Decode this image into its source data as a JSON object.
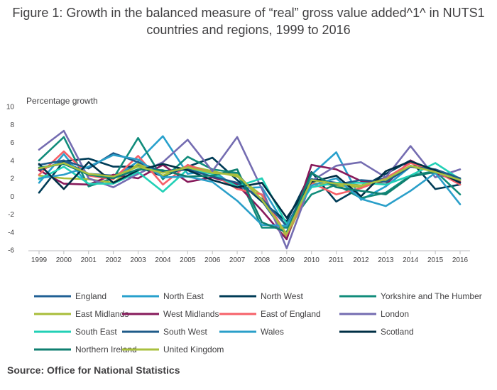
{
  "chart_data": {
    "type": "line",
    "title": "Figure 1: Growth in the balanced measure of “real” gross value added^1^ in NUTS1 countries and regions, 1999 to 2016",
    "ylabel": "Percentage growth",
    "xlabel": "",
    "ylim": [
      -6,
      10
    ],
    "yticks": [
      -6,
      -4,
      -2,
      0,
      2,
      4,
      6,
      8,
      10
    ],
    "x": [
      "1999",
      "2000",
      "2001",
      "2002",
      "2003",
      "2004",
      "2005",
      "2006",
      "2007",
      "2008",
      "2009",
      "2010",
      "2011",
      "2012",
      "2013",
      "2014",
      "2015",
      "2016"
    ],
    "grid": false,
    "legend_position": "bottom",
    "series": [
      {
        "name": "England",
        "color": "#206095",
        "values": [
          2.9,
          3.9,
          2.5,
          2.3,
          3.4,
          2.8,
          3.1,
          2.6,
          2.5,
          -0.5,
          -4.4,
          1.9,
          1.5,
          1.2,
          2.1,
          3.3,
          2.8,
          1.9
        ]
      },
      {
        "name": "North East",
        "color": "#27a0cc",
        "values": [
          1.5,
          4.7,
          1.2,
          2.0,
          3.9,
          6.7,
          2.5,
          2.9,
          0.9,
          1.0,
          -3.5,
          2.4,
          4.9,
          -0.4,
          1.1,
          3.3,
          2.8,
          1.8
        ]
      },
      {
        "name": "North West",
        "color": "#003c57",
        "values": [
          0.4,
          3.9,
          4.2,
          3.3,
          3.3,
          2.2,
          3.3,
          4.3,
          1.8,
          -0.6,
          -2.8,
          2.7,
          -0.6,
          1.0,
          2.5,
          4.0,
          0.8,
          1.3
        ]
      },
      {
        "name": "Yorkshire and The Humber",
        "color": "#118c7b",
        "values": [
          4.0,
          6.6,
          1.1,
          2.0,
          6.5,
          1.9,
          4.4,
          3.0,
          2.6,
          -3.5,
          -3.5,
          0.2,
          1.3,
          -0.2,
          0.4,
          2.3,
          2.8,
          0.2
        ]
      },
      {
        "name": "East Midlands",
        "color": "#a8bd3a",
        "values": [
          2.3,
          2.0,
          1.9,
          1.5,
          3.6,
          2.3,
          3.4,
          2.8,
          2.2,
          0.1,
          -4.6,
          1.5,
          1.2,
          1.0,
          1.7,
          3.3,
          2.8,
          2.0
        ]
      },
      {
        "name": "West Midlands",
        "color": "#871a5b",
        "values": [
          2.9,
          1.4,
          1.3,
          2.4,
          2.0,
          3.5,
          1.6,
          2.1,
          1.3,
          -1.6,
          -4.8,
          3.5,
          3.0,
          1.7,
          1.3,
          4.0,
          2.6,
          1.6
        ]
      },
      {
        "name": "East of England",
        "color": "#f66068",
        "values": [
          2.4,
          5.0,
          2.3,
          1.9,
          4.5,
          1.3,
          3.5,
          2.5,
          0.8,
          0.2,
          -4.3,
          1.5,
          0.2,
          0.9,
          2.0,
          3.7,
          2.8,
          1.3
        ]
      },
      {
        "name": "London",
        "color": "#746cb1",
        "values": [
          5.2,
          7.3,
          2.0,
          1.0,
          2.5,
          3.8,
          6.3,
          2.8,
          6.6,
          0.8,
          -5.8,
          1.7,
          3.4,
          3.8,
          2.1,
          5.6,
          2.1,
          3.0
        ]
      },
      {
        "name": "South East",
        "color": "#22d0b6",
        "values": [
          1.9,
          3.3,
          1.4,
          1.4,
          2.7,
          0.5,
          3.0,
          2.5,
          1.1,
          2.0,
          -3.1,
          1.0,
          1.5,
          1.5,
          1.3,
          2.3,
          3.7,
          1.9
        ]
      },
      {
        "name": "South West",
        "color": "#1f5b89",
        "values": [
          3.5,
          4.0,
          3.1,
          4.8,
          3.8,
          2.7,
          3.0,
          2.2,
          1.5,
          -0.3,
          -3.3,
          1.9,
          1.3,
          1.8,
          1.6,
          3.3,
          3.0,
          2.0
        ]
      },
      {
        "name": "Wales",
        "color": "#2a9fc9",
        "values": [
          2.0,
          2.4,
          3.3,
          4.6,
          4.1,
          2.1,
          2.2,
          1.6,
          -0.5,
          -3.2,
          -3.3,
          1.2,
          2.0,
          -0.3,
          -1.1,
          0.6,
          2.6,
          -0.9
        ]
      },
      {
        "name": "Scotland",
        "color": "#002f45",
        "values": [
          3.6,
          0.8,
          3.8,
          1.5,
          2.9,
          3.6,
          2.9,
          1.8,
          1.0,
          1.5,
          -2.4,
          1.6,
          2.3,
          0.0,
          2.8,
          3.9,
          2.9,
          1.5
        ]
      },
      {
        "name": "Northern Ireland",
        "color": "#0f7f70",
        "values": [
          3.2,
          3.6,
          2.4,
          2.0,
          3.0,
          2.9,
          2.2,
          2.3,
          3.0,
          -2.9,
          -4.0,
          2.6,
          1.0,
          0.6,
          0.2,
          2.2,
          2.7,
          1.8
        ]
      },
      {
        "name": "United Kingdom",
        "color": "#a9c03f",
        "values": [
          3.1,
          3.7,
          2.5,
          2.2,
          3.3,
          2.6,
          3.2,
          2.6,
          2.4,
          -0.4,
          -4.2,
          1.8,
          1.4,
          1.2,
          1.9,
          3.4,
          2.7,
          1.8
        ]
      }
    ]
  },
  "source": "Source: Office for National Statistics"
}
